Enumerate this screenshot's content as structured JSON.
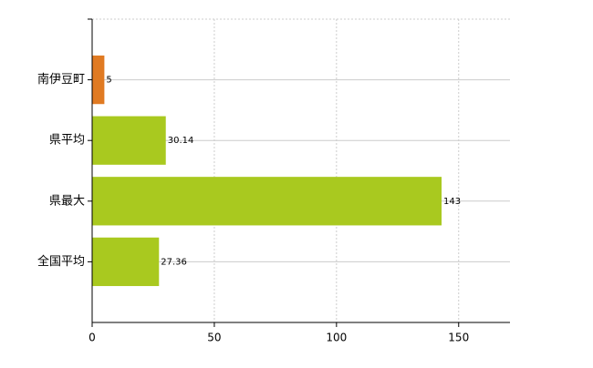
{
  "chart_data": {
    "type": "hbar",
    "categories": [
      "南伊豆町",
      "県平均",
      "県最大",
      "全国平均"
    ],
    "values": [
      5,
      30.14,
      143,
      27.36
    ],
    "colors": [
      "#e07a22",
      "#a9c91f",
      "#a9c91f",
      "#a9c91f"
    ],
    "xlim": [
      0,
      171
    ],
    "xticks": [
      0,
      50,
      100,
      150
    ],
    "grid": true
  }
}
